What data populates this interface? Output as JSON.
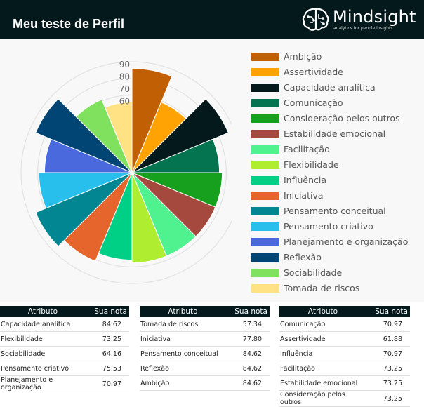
{
  "header": {
    "title": "Meu teste de Perfil"
  },
  "logo": {
    "wordmark": "Mindsight",
    "tagline": "analytics for people insights"
  },
  "chart_data": {
    "type": "polar-area",
    "radial_ticks": [
      "90",
      "80",
      "70",
      "60"
    ],
    "rmax": 90,
    "grid": true,
    "legend_position": "right",
    "categories": [
      "Ambição",
      "Assertividade",
      "Capacidade analítica",
      "Comunicação",
      "Consideração pelos outros",
      "Estabilidade emocional",
      "Facilitação",
      "Flexibilidade",
      "Influência",
      "Iniciativa",
      "Pensamento conceitual",
      "Pensamento criativo",
      "Planejamento e organização",
      "Reflexão",
      "Sociabilidade",
      "Tomada de riscos"
    ],
    "values": [
      84.62,
      61.88,
      84.62,
      70.97,
      73.25,
      73.25,
      73.25,
      73.25,
      70.97,
      77.8,
      84.62,
      75.53,
      70.97,
      84.62,
      64.16,
      57.34
    ],
    "colors": [
      "#c15f04",
      "#ffa305",
      "#04191c",
      "#04734f",
      "#17a01e",
      "#a5483e",
      "#4ff28e",
      "#aeed2f",
      "#00d086",
      "#e6652d",
      "#028792",
      "#28bfec",
      "#4a69dc",
      "#004574",
      "#7fe15d",
      "#fee283"
    ]
  },
  "tables": [
    {
      "header": [
        "Atributo",
        "Sua nota"
      ],
      "rows": [
        [
          "Capacidade analítica",
          "84.62"
        ],
        [
          "Flexibilidade",
          "73.25"
        ],
        [
          "Sociabilidade",
          "64.16"
        ],
        [
          "Pensamento criativo",
          "75.53"
        ],
        [
          "Planejamento e organização",
          "70.97"
        ]
      ]
    },
    {
      "header": [
        "Atributo",
        "Sua nota"
      ],
      "rows": [
        [
          "Tomada de riscos",
          "57.34"
        ],
        [
          "Iniciativa",
          "77.80"
        ],
        [
          "Pensamento conceitual",
          "84.62"
        ],
        [
          "Reflexão",
          "84.62"
        ],
        [
          "Ambição",
          "84.62"
        ]
      ]
    },
    {
      "header": [
        "Atributo",
        "Sua nota"
      ],
      "rows": [
        [
          "Comunicação",
          "70.97"
        ],
        [
          "Assertividade",
          "61.88"
        ],
        [
          "Influência",
          "70.97"
        ],
        [
          "Facilitação",
          "73.25"
        ],
        [
          "Estabilidade emocional",
          "73.25"
        ],
        [
          "Consideração pelos outros",
          "73.25"
        ]
      ]
    }
  ]
}
